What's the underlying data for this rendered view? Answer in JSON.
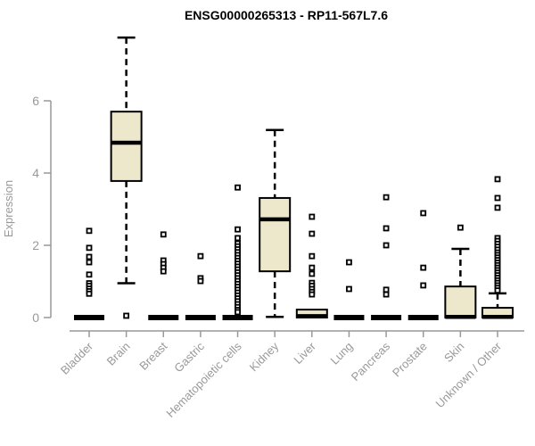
{
  "chart_data": {
    "type": "boxplot",
    "title": "ENSG00000265313 - RP11-567L7.6",
    "xlabel": "",
    "ylabel": "Expression",
    "yticks": [
      0,
      2,
      4,
      6
    ],
    "ylim": [
      0,
      7.9
    ],
    "grid": false,
    "legend": "none",
    "colors": {
      "box_fill": "#EDE8CC",
      "box_stroke": "#000000",
      "median": "#000000",
      "whisker": "#000000",
      "outlier_stroke": "#000000",
      "outlier_fill": "#ffffff",
      "axis": "#999999",
      "tick_label": "#999999",
      "title": "#000000",
      "background": "#ffffff"
    },
    "categories": [
      "Bladder",
      "Brain",
      "Breast",
      "Gastric",
      "Hematopoietic cells",
      "Kidney",
      "Liver",
      "Lung",
      "Pancreas",
      "Prostate",
      "Skin",
      "Unknown / Other"
    ],
    "boxes": [
      {
        "category": "Bladder",
        "whislo": 0,
        "q1": 0,
        "med": 0,
        "q3": 0,
        "whishi": 0,
        "outliers": [
          2.4,
          1.93,
          1.68,
          1.53,
          1.19,
          0.95,
          0.88,
          0.8,
          0.73,
          0.66
        ]
      },
      {
        "category": "Brain",
        "whislo": 0.95,
        "q1": 3.78,
        "med": 4.84,
        "q3": 5.7,
        "whishi": 7.75,
        "outliers": [
          0.05
        ]
      },
      {
        "category": "Breast",
        "whislo": 0,
        "q1": 0,
        "med": 0,
        "q3": 0,
        "whishi": 0,
        "outliers": [
          2.3,
          1.58,
          1.48,
          1.38,
          1.28
        ]
      },
      {
        "category": "Gastric",
        "whislo": 0,
        "q1": 0,
        "med": 0,
        "q3": 0,
        "whishi": 0,
        "outliers": [
          1.7,
          1.09,
          1.01
        ]
      },
      {
        "category": "Hematopoietic cells",
        "whislo": 0,
        "q1": 0,
        "med": 0,
        "q3": 0,
        "whishi": 0,
        "outliers": [
          3.6,
          2.44,
          2.2,
          2.05,
          1.97,
          1.89,
          1.81,
          1.73,
          1.65,
          1.57,
          1.49,
          1.41,
          1.33,
          1.25,
          1.17,
          1.09,
          1.01,
          0.93,
          0.85,
          0.77,
          0.69,
          0.61,
          0.53,
          0.45,
          0.37,
          0.29,
          0.21,
          0.15
        ]
      },
      {
        "category": "Kidney",
        "whislo": 0.02,
        "q1": 1.28,
        "med": 2.72,
        "q3": 3.31,
        "whishi": 5.19,
        "outliers": []
      },
      {
        "category": "Liver",
        "whislo": 0,
        "q1": 0,
        "med": 0.04,
        "q3": 0.22,
        "whishi": 0.22,
        "outliers": [
          2.79,
          2.32,
          1.7,
          1.38,
          1.21,
          0.96,
          0.88,
          0.79,
          0.71,
          0.64
        ]
      },
      {
        "category": "Lung",
        "whislo": 0,
        "q1": 0,
        "med": 0,
        "q3": 0,
        "whishi": 0,
        "outliers": [
          1.53,
          0.79
        ]
      },
      {
        "category": "Pancreas",
        "whislo": 0,
        "q1": 0,
        "med": 0,
        "q3": 0,
        "whishi": 0,
        "outliers": [
          3.33,
          2.47,
          2.0,
          0.77,
          0.64
        ]
      },
      {
        "category": "Prostate",
        "whislo": 0,
        "q1": 0,
        "med": 0,
        "q3": 0,
        "whishi": 0,
        "outliers": [
          2.89,
          1.38,
          0.89
        ]
      },
      {
        "category": "Skin",
        "whislo": 0,
        "q1": 0,
        "med": 0.02,
        "q3": 0.86,
        "whishi": 1.9,
        "outliers": [
          2.49
        ]
      },
      {
        "category": "Unknown / Other",
        "whislo": 0,
        "q1": 0,
        "med": 0.02,
        "q3": 0.27,
        "whishi": 0.67,
        "outliers": [
          3.83,
          3.31,
          3.04,
          2.2,
          2.12,
          2.04,
          1.96,
          1.88,
          1.8,
          1.73,
          1.66,
          1.59,
          1.52,
          1.45,
          1.38,
          1.31,
          1.24,
          1.17,
          1.1,
          1.03,
          0.96,
          0.89,
          0.82,
          0.75
        ]
      }
    ]
  }
}
